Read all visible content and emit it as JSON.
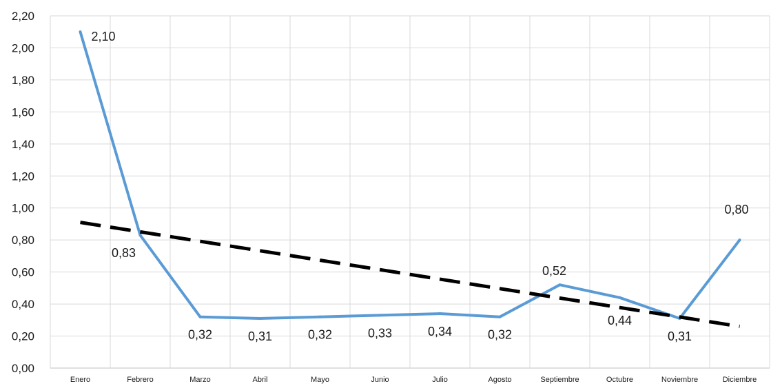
{
  "chart_data": {
    "type": "line",
    "categories": [
      "Enero",
      "Febrero",
      "Marzo",
      "Abril",
      "Mayo",
      "Junio",
      "Julio",
      "Agosto",
      "Septiembre",
      "Octubre",
      "Noviembre",
      "Diciembre"
    ],
    "series": [
      {
        "values": [
          2.1,
          0.83,
          0.32,
          0.31,
          0.32,
          0.33,
          0.34,
          0.32,
          0.52,
          0.44,
          0.31,
          0.8
        ],
        "data_labels": [
          "2,10",
          "0,83",
          "0,32",
          "0,31",
          "0,32",
          "0,33",
          "0,34",
          "0,32",
          "0,52",
          "0,44",
          "0,31",
          "0,80"
        ],
        "color": "#5b9bd5",
        "style": "solid"
      }
    ],
    "trendline": {
      "type": "linear",
      "start": 0.91,
      "end": 0.26,
      "color": "#000000",
      "style": "dashed"
    },
    "y_ticks": [
      "0,00",
      "0,20",
      "0,40",
      "0,60",
      "0,80",
      "1,00",
      "1,20",
      "1,40",
      "1,60",
      "1,80",
      "2,00",
      "2,20"
    ],
    "ylim": [
      0,
      2.2
    ],
    "grid": true,
    "legend": "none"
  }
}
